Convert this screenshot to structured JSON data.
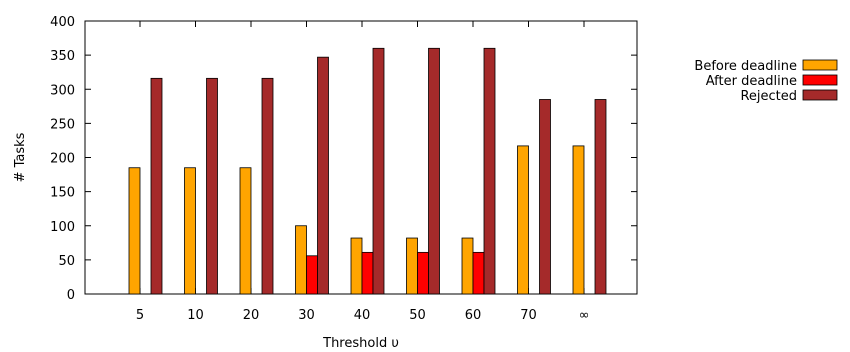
{
  "chart_data": {
    "type": "bar",
    "xlabel": "Threshold υ",
    "ylabel": "# Tasks",
    "ylim": [
      0,
      400
    ],
    "yticks": [
      0,
      50,
      100,
      150,
      200,
      250,
      300,
      350,
      400
    ],
    "categories": [
      "5",
      "10",
      "20",
      "30",
      "40",
      "50",
      "60",
      "70",
      "∞"
    ],
    "series": [
      {
        "name": "Before deadline",
        "color": "#ffa500",
        "values": [
          185,
          185,
          185,
          100,
          82,
          82,
          82,
          217,
          217
        ]
      },
      {
        "name": "After deadline",
        "color": "#ff0000",
        "values": [
          0,
          0,
          0,
          56,
          61,
          61,
          61,
          0,
          0
        ]
      },
      {
        "name": "Rejected",
        "color": "#a52a2a",
        "values": [
          316,
          316,
          316,
          347,
          360,
          360,
          360,
          285,
          285
        ]
      }
    ],
    "legend_position": "top-right, outside plot",
    "grid": false
  }
}
